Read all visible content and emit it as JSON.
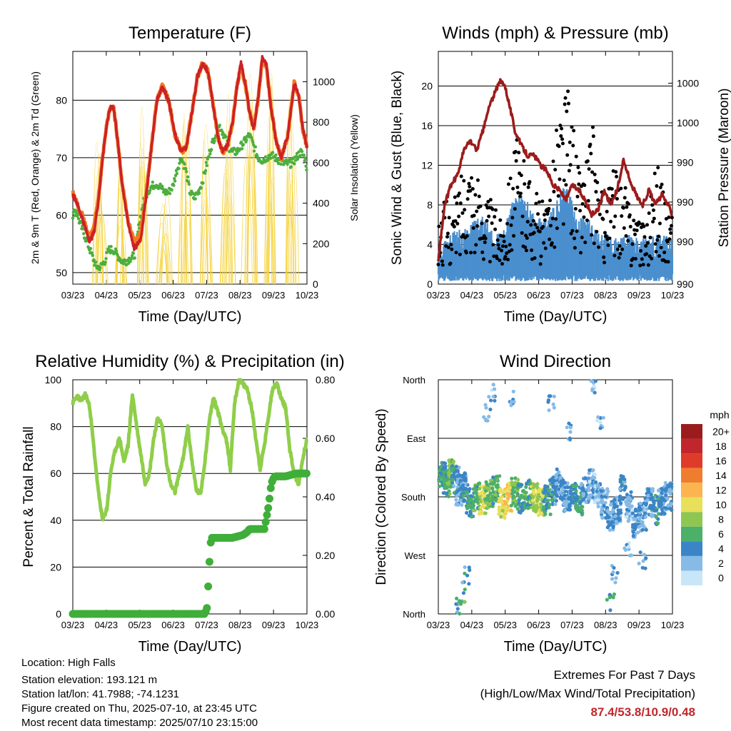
{
  "chart_data": [
    {
      "id": "temperature",
      "type": "line",
      "title": "Temperature (F)",
      "xlabel": "Time (Day/UTC)",
      "ylabel": "2m & 9m T (Red, Orange) & 2m Td (Green)",
      "y2label": "Solar Insolation (Yellow)",
      "xticks": [
        "03/23",
        "04/23",
        "05/23",
        "06/23",
        "07/23",
        "08/23",
        "09/23",
        "10/23"
      ],
      "ylim": [
        48,
        88.5
      ],
      "yticks": [
        50,
        60,
        70,
        80
      ],
      "y2lim": [
        0,
        1150
      ],
      "y2ticks": [
        0,
        200,
        400,
        600,
        800,
        1000
      ],
      "grid": "horizontal",
      "series": [
        {
          "key": "t9m",
          "color": "#f07a20",
          "style": "line",
          "x": [
            0,
            0.1,
            0.2,
            0.3,
            0.45,
            0.6,
            0.8,
            1.0,
            1.2,
            1.4,
            1.6,
            1.75,
            1.9,
            2.05,
            2.3,
            2.6,
            2.9,
            3.2,
            3.45,
            3.7,
            3.95,
            4.2,
            4.5,
            4.8,
            5.1,
            5.35,
            5.6,
            5.85,
            6.1,
            6.35,
            6.6,
            6.85,
            7.05,
            7.25,
            7.5,
            7.7,
            7.9,
            8.1,
            8.3,
            8.5,
            8.7,
            8.9,
            9.1,
            9.3,
            9.55,
            9.8,
            10.1,
            10.4,
            10.6,
            10.8,
            11.0
          ],
          "y": [
            64,
            63,
            62,
            61,
            60,
            58,
            56,
            58,
            63,
            70,
            76,
            78.5,
            79,
            75,
            66,
            59,
            55,
            57,
            64,
            72,
            80,
            82.5,
            80,
            74,
            71,
            72,
            78,
            84,
            86.5,
            85,
            79,
            73,
            71,
            72,
            76,
            82,
            86,
            83,
            78,
            75,
            80,
            87,
            86,
            79,
            73,
            70,
            74,
            83,
            81,
            75,
            72
          ]
        },
        {
          "key": "t2m",
          "color": "#cc2127",
          "style": "line",
          "x": [
            0,
            0.1,
            0.2,
            0.3,
            0.45,
            0.6,
            0.8,
            1.0,
            1.2,
            1.4,
            1.6,
            1.75,
            1.9,
            2.05,
            2.3,
            2.6,
            2.9,
            3.2,
            3.45,
            3.7,
            3.95,
            4.2,
            4.5,
            4.8,
            5.1,
            5.35,
            5.6,
            5.85,
            6.1,
            6.35,
            6.6,
            6.85,
            7.05,
            7.25,
            7.5,
            7.7,
            7.9,
            8.1,
            8.3,
            8.5,
            8.7,
            8.9,
            9.1,
            9.3,
            9.55,
            9.8,
            10.1,
            10.4,
            10.6,
            10.8,
            11.0
          ],
          "y": [
            63.5,
            63,
            62,
            61,
            59.5,
            57.5,
            55.5,
            57,
            62.5,
            70,
            76,
            78.5,
            79,
            75,
            66,
            58.5,
            54,
            56,
            63.5,
            72,
            80,
            82.5,
            80,
            74,
            71,
            72,
            78,
            84,
            86.5,
            85,
            79,
            73,
            71,
            72,
            76,
            82,
            86.5,
            83,
            78,
            75,
            80,
            87.5,
            86,
            79,
            73,
            70,
            74,
            83,
            81,
            75,
            72
          ]
        },
        {
          "key": "td2m",
          "color": "#4caf3d",
          "style": "dots",
          "x": [
            0,
            0.15,
            0.3,
            0.5,
            0.7,
            0.9,
            1.1,
            1.3,
            1.5,
            1.7,
            1.9,
            2.1,
            2.3,
            2.5,
            2.7,
            2.9,
            3.1,
            3.3,
            3.5,
            3.7,
            3.9,
            4.1,
            4.3,
            4.5,
            4.7,
            4.9,
            5.1,
            5.3,
            5.5,
            5.7,
            5.9,
            6.1,
            6.3,
            6.5,
            6.7,
            6.9,
            7.1,
            7.3,
            7.5,
            7.7,
            7.9,
            8.1,
            8.3,
            8.5,
            8.7,
            8.9,
            9.1,
            9.3,
            9.5,
            9.7,
            9.9,
            10.1,
            10.3,
            10.5,
            10.7,
            10.9,
            11.0
          ],
          "y": [
            60,
            61,
            59,
            57,
            55,
            53,
            51,
            51,
            52,
            54,
            54,
            53,
            52,
            52,
            52.5,
            53,
            58,
            62,
            64,
            65,
            65.5,
            65,
            64,
            64,
            65,
            68,
            70,
            68,
            64,
            63,
            64,
            66,
            69,
            72,
            74,
            75.5,
            74,
            72,
            71,
            71,
            72,
            73,
            74,
            72,
            70,
            69.5,
            70,
            70.5,
            70,
            69.5,
            69,
            69,
            69,
            70,
            71,
            70,
            68
          ]
        },
        {
          "key": "solar",
          "color": "#f4d23c",
          "style": "spikes",
          "axis": "y2",
          "x": [
            1.25,
            2.25,
            3.3,
            4.3,
            5.3,
            6.3,
            7.3,
            8.3,
            9.3,
            10.3
          ],
          "y": [
            950,
            700,
            950,
            500,
            950,
            1000,
            1050,
            1100,
            1100,
            1050
          ]
        }
      ]
    },
    {
      "id": "winds",
      "type": "scatter",
      "title": "Winds (mph) & Pressure (mb)",
      "xlabel": "Time (Day/UTC)",
      "ylabel": "Sonic Wind & Gust (Blue, Black)",
      "y2label": "Station Pressure (Maroon)",
      "xticks": [
        "03/23",
        "04/23",
        "05/23",
        "06/23",
        "07/23",
        "08/23",
        "09/23",
        "10/23"
      ],
      "ylim": [
        0,
        23.5
      ],
      "yticks": [
        0,
        4,
        8,
        12,
        16,
        20
      ],
      "y2ticks": [
        "990",
        "990",
        "990",
        "990",
        "1000",
        "1000"
      ],
      "grid": "horizontal",
      "series": [
        {
          "key": "wind",
          "color": "#4a8fce",
          "style": "band",
          "x": [
            0,
            0.5,
            1.0,
            1.5,
            2.0,
            2.5,
            3.0,
            3.5,
            4.0,
            4.5,
            5.0,
            5.5,
            6.0,
            6.5,
            7.0,
            7.5,
            8.0,
            8.5,
            9.0,
            9.5,
            10.0,
            10.5,
            11.0
          ],
          "y": [
            2,
            3,
            3.5,
            4,
            5,
            3.5,
            3,
            6.5,
            7,
            5,
            4.5,
            6,
            8.5,
            4.5,
            5,
            3,
            3,
            2.5,
            3,
            2.5,
            3,
            3,
            2.5
          ]
        },
        {
          "key": "gust",
          "color": "#000000",
          "style": "dots",
          "x": [
            0,
            0.3,
            0.6,
            0.9,
            1.2,
            1.5,
            1.8,
            2.1,
            2.4,
            2.7,
            3.0,
            3.3,
            3.6,
            3.9,
            4.2,
            4.5,
            4.8,
            5.1,
            5.4,
            5.7,
            6.0,
            6.2,
            6.4,
            6.7,
            7.0,
            7.3,
            7.6,
            7.9,
            8.2,
            8.5,
            8.8,
            9.1,
            9.4,
            9.7,
            10.0,
            10.3,
            10.6,
            10.9
          ],
          "y": [
            6,
            8,
            7,
            9,
            12,
            13,
            10,
            9,
            8,
            7,
            6,
            10,
            14,
            12,
            11,
            9,
            8,
            7,
            14,
            17,
            19,
            18,
            14,
            10,
            13,
            15,
            9,
            8,
            11,
            10,
            9,
            7,
            8,
            6,
            9,
            12,
            8,
            7
          ]
        },
        {
          "key": "pressure",
          "color": "#9b1c1c",
          "style": "line",
          "x": [
            0,
            0.3,
            0.6,
            0.9,
            1.2,
            1.5,
            1.8,
            2.1,
            2.4,
            2.7,
            2.9,
            3.1,
            3.3,
            3.6,
            3.9,
            4.2,
            4.5,
            4.8,
            5.1,
            5.4,
            5.7,
            6.0,
            6.3,
            6.6,
            6.9,
            7.2,
            7.5,
            7.8,
            8.1,
            8.4,
            8.7,
            9.0,
            9.3,
            9.6,
            9.9,
            10.2,
            10.5,
            10.8,
            11.0
          ],
          "y": [
            2.5,
            8,
            10,
            11,
            13.5,
            14.5,
            13.5,
            15.5,
            18,
            19.5,
            20.5,
            20.3,
            18.5,
            15.5,
            14,
            13,
            13,
            12,
            11.5,
            10,
            9.5,
            8.5,
            10,
            9.5,
            8.5,
            7,
            7.5,
            9.5,
            8,
            9.5,
            12.5,
            10.5,
            9,
            8,
            9.5,
            8,
            9,
            8,
            7
          ]
        }
      ]
    },
    {
      "id": "humidity",
      "type": "line",
      "title": "Relative Humidity (%) & Precipitation (in)",
      "xlabel": "Time (Day/UTC)",
      "ylabel": "Percent & Total Rainfall",
      "xticks": [
        "03/23",
        "04/23",
        "05/23",
        "06/23",
        "07/23",
        "08/23",
        "09/23",
        "10/23"
      ],
      "ylim": [
        0,
        100
      ],
      "yticks": [
        0,
        20,
        40,
        60,
        80,
        100
      ],
      "y2lim": [
        0,
        0.8
      ],
      "y2ticks": [
        "0.00",
        "0.20",
        "0.40",
        "0.60",
        "0.80"
      ],
      "grid": "horizontal",
      "series": [
        {
          "key": "rh",
          "color": "#8fce4a",
          "style": "line",
          "x": [
            0,
            0.2,
            0.4,
            0.6,
            0.8,
            1.0,
            1.2,
            1.4,
            1.6,
            1.8,
            2.0,
            2.2,
            2.4,
            2.6,
            2.8,
            3.0,
            3.2,
            3.4,
            3.6,
            3.8,
            4.0,
            4.2,
            4.4,
            4.6,
            4.8,
            5.0,
            5.2,
            5.4,
            5.6,
            5.8,
            6.0,
            6.2,
            6.4,
            6.6,
            6.8,
            7.0,
            7.2,
            7.4,
            7.6,
            7.8,
            8.0,
            8.2,
            8.4,
            8.6,
            8.8,
            9.0,
            9.2,
            9.4,
            9.6,
            9.8,
            10.0,
            10.2,
            10.4,
            10.6,
            10.8,
            11.0
          ],
          "y": [
            90,
            93,
            91,
            94,
            88,
            70,
            52,
            40,
            45,
            62,
            70,
            75,
            65,
            72,
            94,
            80,
            68,
            56,
            60,
            75,
            84,
            80,
            65,
            55,
            52,
            60,
            67,
            80,
            65,
            53,
            51,
            65,
            82,
            92,
            87,
            80,
            75,
            62,
            90,
            100,
            98,
            96,
            88,
            75,
            62,
            72,
            85,
            97,
            98,
            92,
            88,
            70,
            60,
            55,
            66,
            75
          ]
        },
        {
          "key": "precip",
          "color": "#3fae3a",
          "style": "dots",
          "axis": "y2",
          "x": [
            0,
            0.5,
            1.0,
            1.5,
            2.0,
            2.5,
            3.0,
            3.5,
            4.0,
            4.5,
            5.0,
            5.5,
            6.0,
            6.2,
            6.3,
            6.35,
            6.4,
            6.45,
            6.5,
            7.0,
            7.5,
            8.0,
            8.2,
            8.3,
            8.5,
            8.8,
            9.0,
            9.2,
            9.3,
            9.35,
            9.4,
            9.5,
            9.8,
            10.0,
            10.5,
            11.0
          ],
          "y": [
            0,
            0,
            0,
            0,
            0,
            0,
            0,
            0,
            0,
            0,
            0,
            0,
            0,
            0,
            0.02,
            0.08,
            0.15,
            0.22,
            0.26,
            0.26,
            0.26,
            0.27,
            0.28,
            0.29,
            0.29,
            0.29,
            0.29,
            0.37,
            0.43,
            0.45,
            0.46,
            0.47,
            0.47,
            0.47,
            0.48,
            0.48
          ]
        }
      ]
    },
    {
      "id": "winddir",
      "type": "scatter",
      "title": "Wind Direction",
      "xlabel": "Time (Day/UTC)",
      "ylabel": "Direction (Colored By Speed)",
      "xticks": [
        "03/23",
        "04/23",
        "05/23",
        "06/23",
        "07/23",
        "08/23",
        "09/23",
        "10/23"
      ],
      "yticks": [
        "North",
        "West",
        "South",
        "East",
        "North"
      ],
      "ylim": [
        0,
        360
      ],
      "grid": "horizontal",
      "colorbar": {
        "unit": "mph",
        "labels": [
          "20+",
          "18",
          "16",
          "14",
          "12",
          "10",
          "8",
          "6",
          "4",
          "2",
          "0"
        ],
        "colors": [
          "#9b1c1c",
          "#c0272d",
          "#de3b2a",
          "#f07d2e",
          "#fbb450",
          "#e8e05a",
          "#8fc651",
          "#4caf6a",
          "#3b85c6",
          "#86bbe6",
          "#c8e6f8"
        ]
      },
      "series": [
        {
          "key": "dir",
          "style": "dots",
          "x": [
            0.2,
            0.4,
            0.6,
            0.8,
            1.0,
            1.2,
            1.5,
            1.8,
            2.1,
            2.4,
            2.7,
            3.0,
            3.3,
            3.6,
            3.9,
            4.2,
            4.5,
            4.8,
            5.1,
            5.4,
            5.7,
            6.0,
            6.3,
            6.6,
            6.9,
            7.2,
            7.5,
            7.8,
            8.1,
            8.4,
            8.7,
            9.0,
            9.3,
            9.6,
            9.9,
            10.2,
            10.5,
            10.8,
            1.0,
            1.1,
            1.3,
            2.3,
            2.5,
            3.4,
            5.3,
            6.1,
            7.3,
            7.6,
            8.1,
            8.3,
            8.9,
            9.6
          ],
          "y": [
            210,
            200,
            215,
            205,
            190,
            195,
            170,
            180,
            175,
            185,
            190,
            170,
            180,
            188,
            178,
            185,
            178,
            172,
            175,
            190,
            200,
            180,
            178,
            175,
            190,
            200,
            185,
            170,
            150,
            160,
            190,
            165,
            140,
            150,
            170,
            160,
            175,
            180,
            10,
            30,
            60,
            310,
            340,
            330,
            320,
            280,
            350,
            300,
            20,
            60,
            100,
            80
          ],
          "s": [
            5,
            6,
            7,
            4,
            3,
            4,
            5,
            6,
            9,
            7,
            6,
            10,
            11,
            7,
            5,
            6,
            8,
            9,
            5,
            4,
            3,
            3,
            4,
            5,
            3,
            2,
            2,
            3,
            3,
            3,
            4,
            2,
            3,
            3,
            3,
            4,
            3,
            3,
            4,
            6,
            4,
            3,
            2,
            3,
            3,
            3,
            2,
            2,
            5,
            3,
            2,
            3
          ]
        }
      ]
    }
  ],
  "footer": {
    "location": "Location: High Falls",
    "elevation": "Station elevation: 193.121 m",
    "latlon": "Station lat/lon: 41.7988; -74.1231",
    "created": "Figure created on Thu, 2025-07-10, at 23:45 UTC",
    "recent": "Most recent data timestamp: 2025/07/10 23:15:00",
    "extremes_title": "Extremes For Past 7 Days",
    "extremes_desc": "(High/Low/Max Wind/Total Precipitation)",
    "extremes_values": "87.4/53.8/10.9/0.48"
  }
}
